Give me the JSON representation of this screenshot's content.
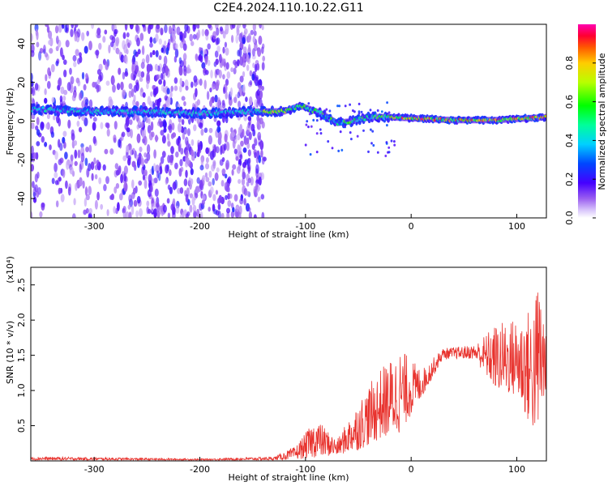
{
  "title": "C2E4.2024.110.10.22.G11",
  "chart_data": [
    {
      "type": "heatmap",
      "xlabel": "Height of straight line (km)",
      "ylabel": "Frequency (Hz)",
      "xlim": [
        -360,
        128
      ],
      "ylim": [
        -50,
        50
      ],
      "xticks": [
        -300,
        -200,
        -100,
        0,
        100
      ],
      "yticks": [
        -40,
        -20,
        0,
        20,
        40
      ],
      "colorbar": {
        "label": "Normalized spectral amplitude",
        "range": [
          0,
          1
        ],
        "ticks": [
          0.0,
          0.2,
          0.4,
          0.6,
          0.8
        ],
        "colors": [
          "#ffffff",
          "#b98bf6",
          "#7000d8",
          "#2a00ff",
          "#00c8ff",
          "#00e88a",
          "#00ff00",
          "#c8ff00",
          "#ffd000",
          "#ff7000",
          "#ff0033",
          "#ff00a0"
        ]
      },
      "dominant_line": [
        {
          "x": -355,
          "y": 6
        },
        {
          "x": -300,
          "y": 5
        },
        {
          "x": -250,
          "y": 5
        },
        {
          "x": -200,
          "y": 4
        },
        {
          "x": -140,
          "y": 5
        },
        {
          "x": -120,
          "y": 5
        },
        {
          "x": -105,
          "y": 8
        },
        {
          "x": -85,
          "y": 4
        },
        {
          "x": -70,
          "y": -1
        },
        {
          "x": -55,
          "y": 0
        },
        {
          "x": -40,
          "y": 2
        },
        {
          "x": -20,
          "y": 2
        },
        {
          "x": 0,
          "y": 1.5
        },
        {
          "x": 40,
          "y": 0.5
        },
        {
          "x": 80,
          "y": 0.5
        },
        {
          "x": 128,
          "y": 2
        }
      ]
    },
    {
      "type": "line",
      "xlabel": "Height of straight line (km)",
      "ylabel": "SNR (10 * v/v)",
      "y_multiplier": "(x10⁴)",
      "xlim": [
        -360,
        128
      ],
      "ylim": [
        0,
        2.75
      ],
      "xticks": [
        -300,
        -200,
        -100,
        0,
        100
      ],
      "yticks": [
        0.5,
        1.0,
        1.5,
        2.0,
        2.5
      ],
      "series_color": "#e8322d",
      "envelope": [
        {
          "x": -360,
          "lo": 0.01,
          "hi": 0.06
        },
        {
          "x": -300,
          "lo": 0.01,
          "hi": 0.05
        },
        {
          "x": -200,
          "lo": 0.01,
          "hi": 0.03
        },
        {
          "x": -130,
          "lo": 0.01,
          "hi": 0.06
        },
        {
          "x": -110,
          "lo": 0.02,
          "hi": 0.2
        },
        {
          "x": -90,
          "lo": 0.05,
          "hi": 0.6
        },
        {
          "x": -70,
          "lo": 0.08,
          "hi": 0.3
        },
        {
          "x": -50,
          "lo": 0.15,
          "hi": 0.85
        },
        {
          "x": -30,
          "lo": 0.3,
          "hi": 1.3
        },
        {
          "x": -10,
          "lo": 0.4,
          "hi": 1.6
        },
        {
          "x": 10,
          "lo": 0.9,
          "hi": 1.3
        },
        {
          "x": 30,
          "lo": 1.45,
          "hi": 1.6
        },
        {
          "x": 60,
          "lo": 1.45,
          "hi": 1.65
        },
        {
          "x": 80,
          "lo": 1.0,
          "hi": 1.95
        },
        {
          "x": 100,
          "lo": 0.9,
          "hi": 2.05
        },
        {
          "x": 115,
          "lo": 0.4,
          "hi": 2.2
        },
        {
          "x": 122,
          "lo": 0.4,
          "hi": 2.75
        },
        {
          "x": 128,
          "lo": 1.1,
          "hi": 1.7
        }
      ]
    }
  ]
}
